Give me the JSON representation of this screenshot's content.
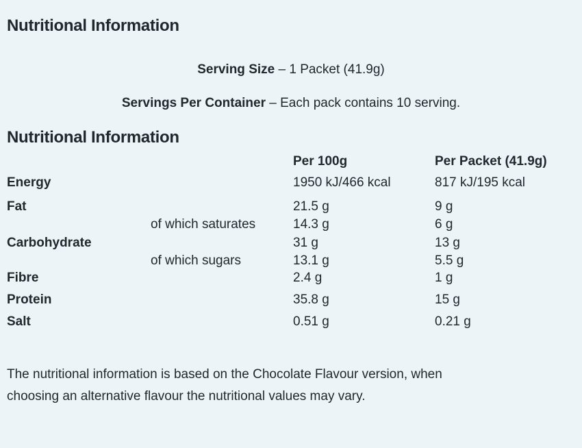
{
  "theme": {
    "background_color": "#ECF4F8",
    "text_color": "#21272D"
  },
  "title": "Nutritional Information",
  "serving": {
    "size_label": "Serving Size",
    "size_value": "– 1 Packet (41.9g)",
    "per_container_label": "Servings Per Container",
    "per_container_value": "– Each pack contains 10 serving."
  },
  "table": {
    "heading": "Nutritional Information",
    "columns": {
      "per_100g": "Per 100g",
      "per_packet": "Per Packet (41.9g)"
    },
    "rows": [
      {
        "label": "Energy",
        "indent": false,
        "per_100g": "1950 kJ/466 kcal",
        "per_packet": "817 kJ/195 kcal"
      },
      {
        "label": "Fat",
        "indent": false,
        "per_100g": "21.5 g",
        "per_packet": "9 g"
      },
      {
        "label": "of which saturates",
        "indent": true,
        "per_100g": "14.3 g",
        "per_packet": "6 g"
      },
      {
        "label": "Carbohydrate",
        "indent": false,
        "per_100g": "31 g",
        "per_packet": "13 g"
      },
      {
        "label": "of which sugars",
        "indent": true,
        "per_100g": "13.1 g",
        "per_packet": "5.5 g"
      },
      {
        "label": "Fibre",
        "indent": false,
        "per_100g": "2.4 g",
        "per_packet": "1 g"
      },
      {
        "label": "Protein",
        "indent": false,
        "per_100g": "35.8 g",
        "per_packet": "15 g"
      },
      {
        "label": "Salt",
        "indent": false,
        "per_100g": "0.51 g",
        "per_packet": "0.21 g"
      }
    ]
  },
  "footnote": "The nutritional information is based on the Chocolate Flavour version, when choosing an alternative flavour the nutritional values may vary."
}
